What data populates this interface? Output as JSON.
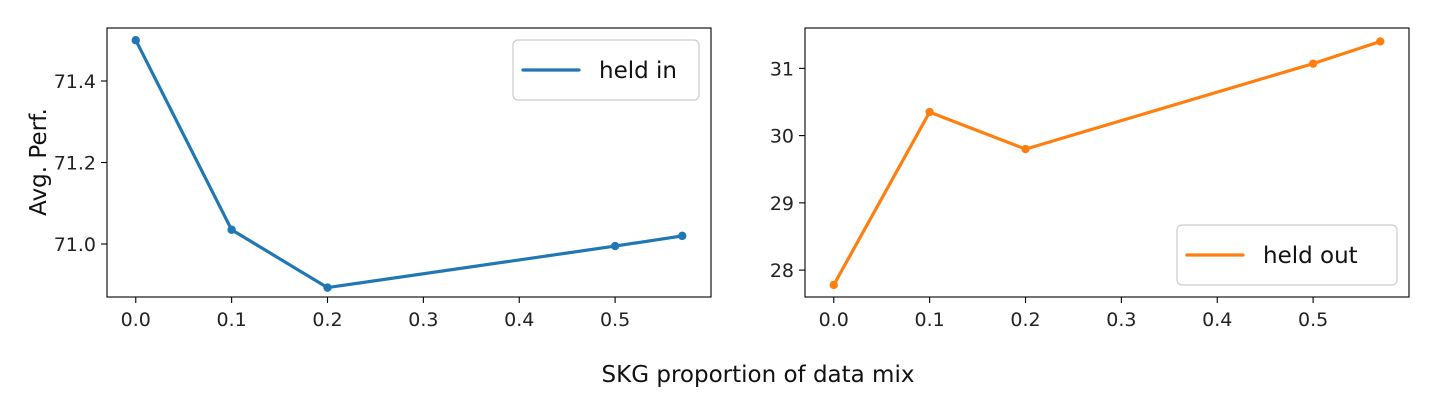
{
  "figure": {
    "xlabel": "SKG proportion of data mix",
    "ylabel": "Avg. Perf."
  },
  "chart_data": [
    {
      "type": "line",
      "x": [
        0.0,
        0.1,
        0.2,
        0.5,
        0.57
      ],
      "series": [
        {
          "name": "held in",
          "color": "#1f77b4",
          "values": [
            71.5,
            71.035,
            70.893,
            70.995,
            71.02
          ]
        }
      ],
      "xlim": [
        -0.03,
        0.6
      ],
      "ylim": [
        70.87,
        71.53
      ],
      "xticks": [
        "0.0",
        "0.1",
        "0.2",
        "0.3",
        "0.4",
        "0.5"
      ],
      "yticks": [
        "71.0",
        "71.2",
        "71.4"
      ],
      "ylabel": "Avg. Perf.",
      "legend": "top-right",
      "grid": false
    },
    {
      "type": "line",
      "x": [
        0.0,
        0.1,
        0.2,
        0.5,
        0.57
      ],
      "series": [
        {
          "name": "held out",
          "color": "#ff7f0e",
          "values": [
            27.78,
            30.35,
            29.8,
            31.07,
            31.4
          ]
        }
      ],
      "xlim": [
        -0.03,
        0.6
      ],
      "ylim": [
        27.6,
        31.6
      ],
      "xticks": [
        "0.0",
        "0.1",
        "0.2",
        "0.3",
        "0.4",
        "0.5"
      ],
      "yticks": [
        "28",
        "29",
        "30",
        "31"
      ],
      "legend": "bottom-right",
      "grid": false
    }
  ]
}
